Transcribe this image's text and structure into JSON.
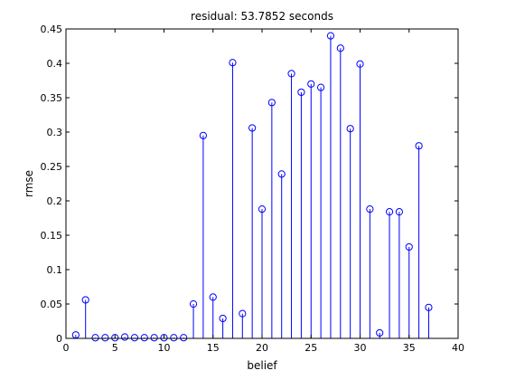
{
  "chart_data": {
    "type": "stem",
    "title": "residual: 53.7852 seconds",
    "xlabel": "belief",
    "ylabel": "rmse",
    "xlim": [
      0,
      40
    ],
    "ylim": [
      0,
      0.45
    ],
    "xticks": [
      0,
      5,
      10,
      15,
      20,
      25,
      30,
      35,
      40
    ],
    "yticks": [
      0,
      0.05,
      0.1,
      0.15,
      0.2,
      0.25,
      0.3,
      0.35,
      0.4,
      0.45
    ],
    "xtick_labels": [
      "0",
      "5",
      "10",
      "15",
      "20",
      "25",
      "30",
      "35",
      "40"
    ],
    "ytick_labels": [
      "0",
      "0.05",
      "0.1",
      "0.15",
      "0.2",
      "0.25",
      "0.3",
      "0.35",
      "0.4",
      "0.45"
    ],
    "grid": false,
    "color": "#0000ff",
    "x": [
      1,
      2,
      3,
      4,
      5,
      6,
      7,
      8,
      9,
      10,
      11,
      12,
      13,
      14,
      15,
      16,
      17,
      18,
      19,
      20,
      21,
      22,
      23,
      24,
      25,
      26,
      27,
      28,
      29,
      30,
      31,
      32,
      33,
      34,
      35,
      36,
      37
    ],
    "values": [
      0.005,
      0.056,
      0.001,
      0.001,
      0.001,
      0.002,
      0.001,
      0.001,
      0.001,
      0.001,
      0.001,
      0.001,
      0.05,
      0.295,
      0.06,
      0.029,
      0.401,
      0.036,
      0.306,
      0.188,
      0.343,
      0.239,
      0.385,
      0.358,
      0.37,
      0.365,
      0.44,
      0.422,
      0.305,
      0.399,
      0.188,
      0.008,
      0.184,
      0.184,
      0.133,
      0.28,
      0.045
    ]
  }
}
